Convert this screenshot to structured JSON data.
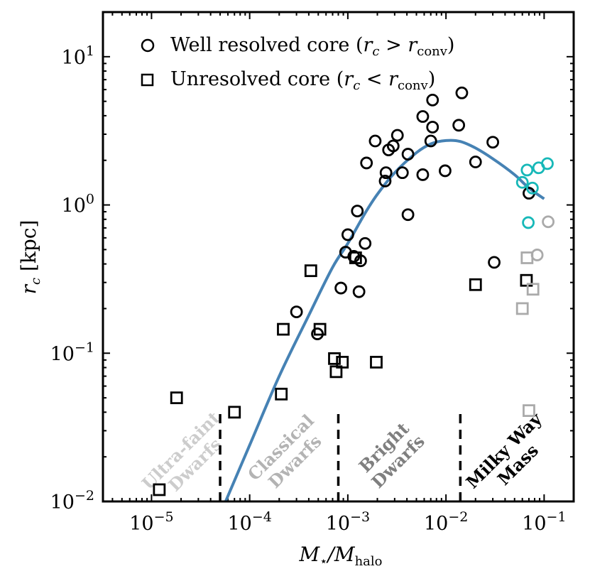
{
  "chart_data": {
    "type": "scatter",
    "xscale": "log",
    "yscale": "log",
    "xlim": [
      3.2e-06,
      0.2
    ],
    "ylim": [
      0.01,
      20
    ],
    "xlabel_main": "M",
    "xlabel_sub1": "⋆",
    "xlabel_mid": "/M",
    "xlabel_sub2": "halo",
    "ylabel_main": "r",
    "ylabel_sub": "c",
    "ylabel_unit": " [kpc]",
    "x_ticks": [
      {
        "value": 1e-05,
        "base": "10",
        "exp": "−5"
      },
      {
        "value": 0.0001,
        "base": "10",
        "exp": "−4"
      },
      {
        "value": 0.001,
        "base": "10",
        "exp": "−3"
      },
      {
        "value": 0.01,
        "base": "10",
        "exp": "−2"
      },
      {
        "value": 0.1,
        "base": "10",
        "exp": "−1"
      }
    ],
    "y_ticks": [
      {
        "value": 0.01,
        "base": "10",
        "exp": "−2"
      },
      {
        "value": 0.1,
        "base": "10",
        "exp": "−1"
      },
      {
        "value": 1,
        "base": "10",
        "exp": "0"
      },
      {
        "value": 10,
        "base": "10",
        "exp": "1"
      }
    ],
    "legend": [
      {
        "marker": "circle",
        "pre": "Well resolved core (",
        "r": "r",
        "rsub": "c",
        "op": " > ",
        "r2": "r",
        "r2sub": "conv",
        "post": ")"
      },
      {
        "marker": "square",
        "pre": "Unresolved core (",
        "r": "r",
        "rsub": "c",
        "op": " < ",
        "r2": "r",
        "r2sub": "conv",
        "post": ")"
      }
    ],
    "dividers": [
      {
        "x": 5e-05,
        "ymax": 0.04
      },
      {
        "x": 0.0008,
        "ymax": 0.04
      },
      {
        "x": 0.014,
        "ymax": 0.04
      }
    ],
    "regions": [
      {
        "line1": "Ultra-faint",
        "line2": "Dwarfs",
        "color": "#cccccc",
        "x": 2.3e-05,
        "y": 0.02
      },
      {
        "line1": "Classical",
        "line2": "Dwarfs",
        "color": "#b3b3b3",
        "x": 0.00024,
        "y": 0.021
      },
      {
        "line1": "Bright",
        "line2": "Dwarfs",
        "color": "#7f7f7f",
        "x": 0.0027,
        "y": 0.021
      },
      {
        "line1": "Milky Way",
        "line2": "Mass",
        "color": "#000000",
        "x": 0.045,
        "y": 0.02
      }
    ],
    "fit_curve": {
      "color": "#4682b4",
      "points": [
        [
          5.5e-05,
          0.0095
        ],
        [
          0.0001,
          0.024
        ],
        [
          0.0002,
          0.07
        ],
        [
          0.0004,
          0.18
        ],
        [
          0.0007,
          0.38
        ],
        [
          0.001,
          0.55
        ],
        [
          0.0015,
          0.88
        ],
        [
          0.002,
          1.18
        ],
        [
          0.003,
          1.65
        ],
        [
          0.005,
          2.25
        ],
        [
          0.007,
          2.58
        ],
        [
          0.01,
          2.72
        ],
        [
          0.014,
          2.68
        ],
        [
          0.02,
          2.42
        ],
        [
          0.03,
          2.05
        ],
        [
          0.05,
          1.6
        ],
        [
          0.07,
          1.3
        ],
        [
          0.1,
          1.1
        ]
      ]
    },
    "series": [
      {
        "name": "Well resolved core (black)",
        "marker": "circle",
        "color": "#000000",
        "points": [
          [
            0.00085,
            0.275
          ],
          [
            0.00095,
            0.48
          ],
          [
            0.001,
            0.63
          ],
          [
            0.00115,
            0.45
          ],
          [
            0.00125,
            0.91
          ],
          [
            0.0013,
            0.26
          ],
          [
            0.00135,
            0.42
          ],
          [
            0.0015,
            0.55
          ],
          [
            0.00155,
            1.92
          ],
          [
            0.0019,
            2.7
          ],
          [
            0.0024,
            1.45
          ],
          [
            0.00245,
            1.65
          ],
          [
            0.0026,
            2.35
          ],
          [
            0.0029,
            2.5
          ],
          [
            0.0032,
            2.95
          ],
          [
            0.0036,
            1.65
          ],
          [
            0.0041,
            2.2
          ],
          [
            0.0041,
            0.86
          ],
          [
            0.0058,
            1.6
          ],
          [
            0.0058,
            3.95
          ],
          [
            0.007,
            2.7
          ],
          [
            0.0073,
            3.35
          ],
          [
            0.0073,
            5.1
          ],
          [
            0.0098,
            1.7
          ],
          [
            0.0135,
            3.45
          ],
          [
            0.0145,
            5.7
          ],
          [
            0.02,
            1.95
          ],
          [
            0.03,
            2.65
          ],
          [
            0.031,
            0.41
          ],
          [
            0.07,
            1.2
          ],
          [
            0.00049,
            0.135
          ],
          [
            0.0003,
            0.19
          ]
        ]
      },
      {
        "name": "Well resolved core (cyan)",
        "marker": "circle",
        "color": "#17b8b8",
        "points": [
          [
            0.06,
            1.42
          ],
          [
            0.067,
            1.72
          ],
          [
            0.076,
            1.3
          ],
          [
            0.088,
            1.78
          ],
          [
            0.108,
            1.9
          ],
          [
            0.069,
            0.76
          ]
        ]
      },
      {
        "name": "Well resolved core (gray)",
        "marker": "circle",
        "color": "#aaaaaa",
        "points": [
          [
            0.085,
            0.46
          ],
          [
            0.11,
            0.77
          ]
        ]
      },
      {
        "name": "Unresolved core (black)",
        "marker": "square",
        "color": "#000000",
        "points": [
          [
            1.2e-05,
            0.012
          ],
          [
            1.8e-05,
            0.05
          ],
          [
            7e-05,
            0.04
          ],
          [
            0.00021,
            0.053
          ],
          [
            0.00022,
            0.145
          ],
          [
            0.00042,
            0.36
          ],
          [
            0.00052,
            0.145
          ],
          [
            0.00073,
            0.092
          ],
          [
            0.00076,
            0.075
          ],
          [
            0.00088,
            0.087
          ],
          [
            0.0012,
            0.44
          ],
          [
            0.00195,
            0.087
          ],
          [
            0.02,
            0.29
          ],
          [
            0.066,
            0.31
          ]
        ]
      },
      {
        "name": "Unresolved core (gray)",
        "marker": "square",
        "color": "#aaaaaa",
        "points": [
          [
            0.06,
            0.2
          ],
          [
            0.067,
            0.44
          ],
          [
            0.077,
            0.27
          ],
          [
            0.07,
            0.041
          ]
        ]
      }
    ]
  }
}
